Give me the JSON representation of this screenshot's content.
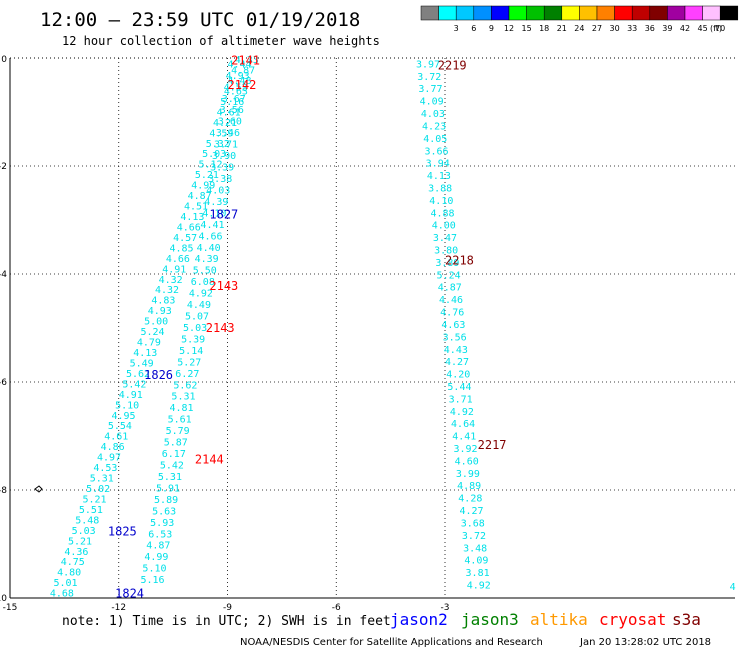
{
  "title": "12:00 – 23:59 UTC 01/19/2018",
  "subtitle": "12 hour collection of altimeter wave heights",
  "legend": {
    "unit": "(ft)",
    "bins": [
      {
        "label": "",
        "color": "#808080"
      },
      {
        "label": "3",
        "color": "#00ffff"
      },
      {
        "label": "6",
        "color": "#00c8ff"
      },
      {
        "label": "9",
        "color": "#0090ff"
      },
      {
        "label": "12",
        "color": "#0000ff"
      },
      {
        "label": "15",
        "color": "#00ff00"
      },
      {
        "label": "18",
        "color": "#00c000"
      },
      {
        "label": "21",
        "color": "#008000"
      },
      {
        "label": "24",
        "color": "#ffff00"
      },
      {
        "label": "27",
        "color": "#ffc000"
      },
      {
        "label": "30",
        "color": "#ff8000"
      },
      {
        "label": "33",
        "color": "#ff0000"
      },
      {
        "label": "36",
        "color": "#c00000"
      },
      {
        "label": "39",
        "color": "#800000"
      },
      {
        "label": "42",
        "color": "#a000a0"
      },
      {
        "label": "45",
        "color": "#ff40ff"
      },
      {
        "label": "70",
        "color": "#ffc0ff"
      },
      {
        "label": "",
        "color": "#000000"
      }
    ]
  },
  "map": {
    "lon_range": [
      -15,
      5
    ],
    "lat_range": [
      -10,
      0
    ],
    "lon_ticks": [
      -15,
      -12,
      -9,
      -6,
      -3
    ],
    "lat_ticks": [
      0,
      -2,
      -4,
      -6,
      -8,
      -10
    ],
    "obs_color": "#00e0e8",
    "tracks": [
      {
        "values": [
          "4.33",
          "4.87",
          "4.48",
          "4.63",
          "5.16",
          "4.61",
          "4.21",
          "4.59",
          "5.32",
          "5.03",
          "5.12",
          "5.21",
          "4.99",
          "4.87",
          "4.51",
          "4.13",
          "4.66",
          "4.57",
          "4.85",
          "4.66",
          "4.91",
          "4.32",
          "4.32",
          "4.83",
          "4.93",
          "5.00",
          "5.24",
          "4.79",
          "4.13",
          "5.49",
          "5.62",
          "5.42",
          "4.91",
          "5.10",
          "4.95",
          "5.54",
          "4.61",
          "4.86",
          "4.97",
          "4.53",
          "5.31",
          "5.02",
          "5.21",
          "5.51",
          "5.48",
          "5.03",
          "5.21",
          "4.36",
          "4.75",
          "4.80",
          "5.01",
          "4.68"
        ],
        "start": [
          -8.8,
          -0.02
        ],
        "end": [
          -13.9,
          -9.9
        ]
      },
      {
        "values": [
          "4.44",
          "4.93",
          "4.52",
          "3.67",
          "3.56",
          "3.60",
          "3.46",
          "3.71",
          "3.90",
          "3.39",
          "3.38",
          "4.03",
          "4.39",
          "4.10",
          "4.41",
          "4.66",
          "4.40",
          "4.39",
          "5.50",
          "6.08",
          "4.92",
          "4.49",
          "5.07",
          "5.03",
          "5.39",
          "5.14",
          "5.27",
          "6.27",
          "5.62",
          "5.31",
          "4.81",
          "5.61",
          "5.79",
          "5.87",
          "6.17",
          "5.42",
          "5.31",
          "5.91",
          "5.89",
          "5.63",
          "5.93",
          "6.53",
          "4.87",
          "4.99",
          "5.10",
          "5.16"
        ],
        "start": [
          -9.0,
          -0.1
        ],
        "end": [
          -11.4,
          -9.65
        ]
      },
      {
        "values": [
          "3.97",
          "3.72",
          "3.77",
          "4.09",
          "4.03",
          "4.23",
          "4.05",
          "3.66",
          "3.94",
          "4.13",
          "3.88",
          "4.10",
          "4.88",
          "4.00",
          "3.47",
          "3.80",
          "3.89",
          "5.24",
          "4.87",
          "4.46",
          "4.76",
          "4.63",
          "3.56",
          "4.43",
          "4.27",
          "4.20",
          "5.44",
          "3.71",
          "4.92",
          "4.64",
          "4.41",
          "3.92",
          "4.60",
          "3.99",
          "4.89",
          "4.28",
          "4.27",
          "3.68",
          "3.72",
          "3.48",
          "4.09",
          "3.81",
          "4.92"
        ],
        "start": [
          -3.8,
          -0.1
        ],
        "end": [
          -2.4,
          -9.75
        ]
      }
    ],
    "passes": [
      {
        "label": "2141",
        "color": "#ff0000",
        "lon": -8.9,
        "lat": -0.03
      },
      {
        "label": "2142",
        "color": "#ff0000",
        "lon": -9.0,
        "lat": -0.48
      },
      {
        "label": "1827",
        "color": "#0000cc",
        "lon": -9.5,
        "lat": -2.88
      },
      {
        "label": "2143",
        "color": "#ff0000",
        "lon": -9.5,
        "lat": -4.2
      },
      {
        "label": "2143",
        "color": "#ff0000",
        "lon": -9.6,
        "lat": -4.98
      },
      {
        "label": "1826",
        "color": "#0000cc",
        "lon": -11.3,
        "lat": -5.85
      },
      {
        "label": "2144",
        "color": "#ff0000",
        "lon": -9.9,
        "lat": -7.42
      },
      {
        "label": "1825",
        "color": "#0000cc",
        "lon": -12.3,
        "lat": -8.75
      },
      {
        "label": "1824",
        "color": "#0000cc",
        "lon": -12.1,
        "lat": -9.9
      },
      {
        "label": "2219",
        "color": "#800000",
        "lon": -3.2,
        "lat": -0.12
      },
      {
        "label": "2218",
        "color": "#800000",
        "lon": -3.0,
        "lat": -3.73
      },
      {
        "label": "2217",
        "color": "#800000",
        "lon": -2.1,
        "lat": -7.15
      }
    ],
    "edge_marks": [
      {
        "label": "4",
        "lon": 4.85,
        "lat": -9.85
      }
    ]
  },
  "footer": {
    "note": "note: 1) Time is in UTC; 2) SWH is in feet",
    "satellites": [
      {
        "name": "jason2",
        "color": "#0000ff"
      },
      {
        "name": "jason3",
        "color": "#008000"
      },
      {
        "name": "altika",
        "color": "#ff9900"
      },
      {
        "name": "cryosat",
        "color": "#ff0000"
      },
      {
        "name": "s3a",
        "color": "#800000"
      }
    ],
    "credit": "NOAA/NESDIS Center for Satellite Applications and Research",
    "timestamp": "Jan 20 13:28:02 UTC 2018"
  }
}
